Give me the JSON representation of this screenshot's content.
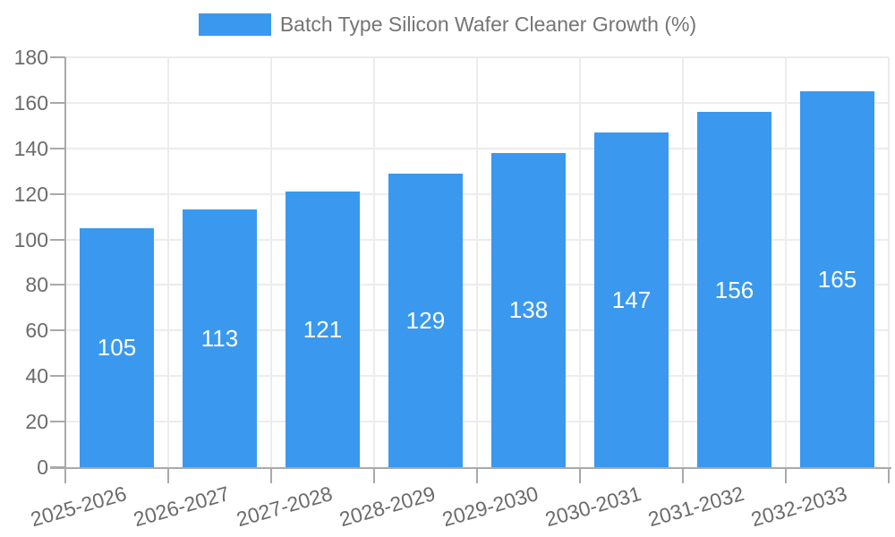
{
  "chart_data": {
    "type": "bar",
    "title": "Batch Type Silicon Wafer Cleaner Growth (%)",
    "legend": {
      "label": "Batch Type Silicon Wafer Cleaner Growth (%)",
      "position": "top-center"
    },
    "categories": [
      "2025-2026",
      "2026-2027",
      "2027-2028",
      "2028-2029",
      "2029-2030",
      "2030-2031",
      "2031-2032",
      "2032-2033"
    ],
    "series": [
      {
        "name": "Batch Type Silicon Wafer Cleaner Growth (%)",
        "values": [
          105,
          113,
          121,
          129,
          138,
          147,
          156,
          165
        ]
      }
    ],
    "value_labels": [
      "105",
      "113",
      "121",
      "129",
      "138",
      "147",
      "156",
      "165"
    ],
    "xlabel": "",
    "ylabel": "",
    "ylim": [
      0,
      180
    ],
    "yticks": [
      0,
      20,
      40,
      60,
      80,
      100,
      120,
      140,
      160,
      180
    ],
    "grid": true,
    "colors": {
      "bar": "#3A99EE",
      "grid": "#ECECEC",
      "axis": "#A9A9A9",
      "tick": "#A9A9A9",
      "text": "#6B6B6B",
      "value_label": "#FFFFFF"
    }
  }
}
